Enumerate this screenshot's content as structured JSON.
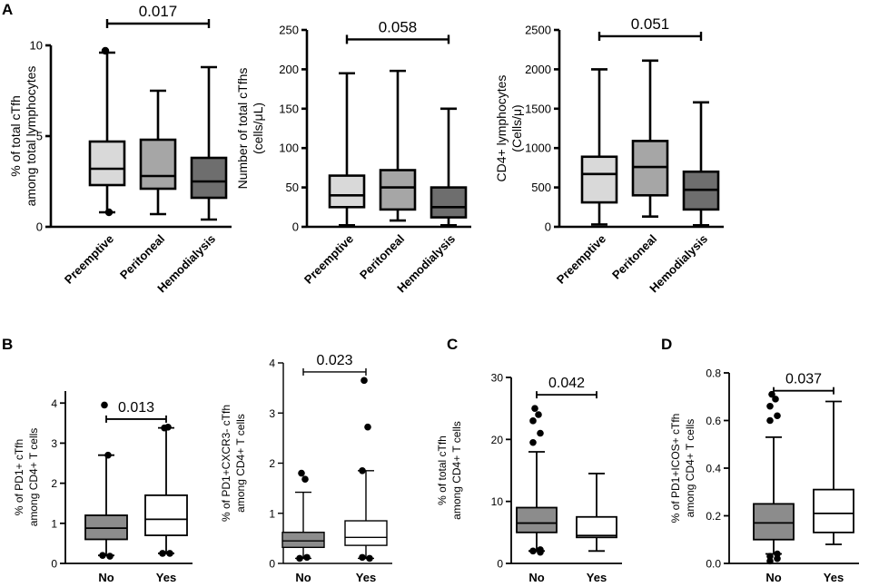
{
  "panel_labels": [
    "A",
    "B",
    "C",
    "D"
  ],
  "colors": {
    "light": "#d9d9d9",
    "mid": "#a6a6a6",
    "dark": "#6e6e6e",
    "white": "#ffffff",
    "gray": "#8c8c8c"
  },
  "chart_data": [
    {
      "type": "box",
      "panel": "A",
      "ylabel_lines": [
        "% of total cTfh",
        "among total lymphocytes"
      ],
      "ylim": [
        0,
        10
      ],
      "yticks": [
        0,
        5,
        10
      ],
      "categories": [
        "Preemptive",
        "Peritoneal",
        "Hemodialysis"
      ],
      "series": [
        {
          "name": "Preemptive",
          "color": "light",
          "min": 0.8,
          "q1": 2.3,
          "median": 3.2,
          "q3": 4.7,
          "max": 9.6,
          "outliers": [
            9.7,
            0.8
          ]
        },
        {
          "name": "Peritoneal",
          "color": "mid",
          "min": 0.7,
          "q1": 2.1,
          "median": 2.8,
          "q3": 4.8,
          "max": 7.5,
          "outliers": []
        },
        {
          "name": "Hemodialysis",
          "color": "dark",
          "min": 0.4,
          "q1": 1.6,
          "median": 2.5,
          "q3": 3.8,
          "max": 8.8,
          "outliers": []
        }
      ],
      "comparison": {
        "from": 0,
        "to": 2,
        "label": "0.017",
        "level": 11.2
      }
    },
    {
      "type": "box",
      "panel": "A",
      "ylabel_lines": [
        "Number of total cTfhs",
        "(cells/μL)"
      ],
      "ylim": [
        0,
        250
      ],
      "yticks": [
        0,
        50,
        100,
        150,
        200,
        250
      ],
      "categories": [
        "Preemptive",
        "Peritoneal",
        "Hemodialysis"
      ],
      "series": [
        {
          "name": "Preemptive",
          "color": "light",
          "min": 2,
          "q1": 25,
          "median": 40,
          "q3": 65,
          "max": 195,
          "outliers": []
        },
        {
          "name": "Peritoneal",
          "color": "mid",
          "min": 8,
          "q1": 22,
          "median": 50,
          "q3": 72,
          "max": 198,
          "outliers": []
        },
        {
          "name": "Hemodialysis",
          "color": "dark",
          "min": 2,
          "q1": 12,
          "median": 25,
          "q3": 50,
          "max": 150,
          "outliers": []
        }
      ],
      "comparison": {
        "from": 0,
        "to": 2,
        "label": "0.058",
        "level": 238
      }
    },
    {
      "type": "box",
      "panel": "A",
      "ylabel_lines": [
        "CD4+ lymphocytes",
        "(Cells/μ)"
      ],
      "ylim": [
        0,
        2500
      ],
      "yticks": [
        0,
        500,
        1000,
        1500,
        2000,
        2500
      ],
      "categories": [
        "Preemptive",
        "Peritoneal",
        "Hemodialysis"
      ],
      "series": [
        {
          "name": "Preemptive",
          "color": "light",
          "min": 30,
          "q1": 310,
          "median": 670,
          "q3": 890,
          "max": 2000,
          "outliers": []
        },
        {
          "name": "Peritoneal",
          "color": "mid",
          "min": 130,
          "q1": 400,
          "median": 760,
          "q3": 1090,
          "max": 2110,
          "outliers": []
        },
        {
          "name": "Hemodialysis",
          "color": "dark",
          "min": 20,
          "q1": 220,
          "median": 470,
          "q3": 700,
          "max": 1580,
          "outliers": []
        }
      ],
      "comparison": {
        "from": 0,
        "to": 2,
        "label": "0.051",
        "level": 2420
      }
    },
    {
      "type": "box",
      "panel": "B",
      "ylabel_lines": [
        "% of PD1+ cTfh",
        "among  CD4+ T cells"
      ],
      "ylim": [
        0,
        4.3
      ],
      "yticks": [
        0,
        1,
        2,
        3,
        4
      ],
      "categories": [
        "No",
        "Yes"
      ],
      "series": [
        {
          "name": "No",
          "color": "gray",
          "min": 0.2,
          "q1": 0.6,
          "median": 0.88,
          "q3": 1.2,
          "max": 2.7,
          "outliers": [
            3.95,
            2.7,
            0.2,
            0.18
          ]
        },
        {
          "name": "Yes",
          "color": "white",
          "min": 0.25,
          "q1": 0.7,
          "median": 1.1,
          "q3": 1.7,
          "max": 3.38,
          "outliers": [
            3.38,
            3.4,
            0.25,
            0.25
          ]
        }
      ],
      "comparison": {
        "from": 0,
        "to": 1,
        "label": "0.013",
        "level": 3.6
      }
    },
    {
      "type": "box",
      "panel": "B",
      "ylabel_lines": [
        "% of PD1+CXCR3- cTfh",
        "among  CD4+ T cells"
      ],
      "ylim": [
        0,
        4
      ],
      "yticks": [
        0,
        1,
        2,
        3,
        4
      ],
      "categories": [
        "No",
        "Yes"
      ],
      "series": [
        {
          "name": "No",
          "color": "gray",
          "min": 0.1,
          "q1": 0.32,
          "median": 0.45,
          "q3": 0.62,
          "max": 1.42,
          "outliers": [
            1.8,
            1.68,
            0.1,
            0.12
          ]
        },
        {
          "name": "Yes",
          "color": "white",
          "min": 0.1,
          "q1": 0.36,
          "median": 0.52,
          "q3": 0.85,
          "max": 1.85,
          "outliers": [
            3.65,
            2.72,
            1.85,
            0.1,
            0.12
          ]
        }
      ],
      "comparison": {
        "from": 0,
        "to": 1,
        "label": "0.023",
        "level": 3.82
      }
    },
    {
      "type": "box",
      "panel": "C",
      "ylabel_lines": [
        "% of total cTfh",
        "among  CD4+ T cells"
      ],
      "ylim": [
        0,
        30
      ],
      "yticks": [
        0,
        10,
        20,
        30
      ],
      "categories": [
        "No",
        "Yes"
      ],
      "series": [
        {
          "name": "No",
          "color": "gray",
          "min": 2,
          "q1": 5,
          "median": 6.5,
          "q3": 9,
          "max": 18,
          "outliers": [
            25,
            24,
            23,
            21,
            19.5,
            2.2,
            2.0,
            1.8
          ]
        },
        {
          "name": "Yes",
          "color": "white",
          "min": 2,
          "q1": 4.2,
          "median": 4.5,
          "q3": 7.5,
          "max": 14.5,
          "outliers": []
        }
      ],
      "comparison": {
        "from": 0,
        "to": 1,
        "label": "0.042",
        "level": 27.2
      }
    },
    {
      "type": "box",
      "panel": "D",
      "ylabel_lines": [
        "% of PD1+ICOS+ cTfh",
        "among  CD4+ T cells"
      ],
      "ylim": [
        0,
        0.8
      ],
      "yticks": [
        0.0,
        0.2,
        0.4,
        0.6,
        0.8
      ],
      "tick_format": "fixed1",
      "categories": [
        "No",
        "Yes"
      ],
      "series": [
        {
          "name": "No",
          "color": "gray",
          "min": 0.04,
          "q1": 0.1,
          "median": 0.17,
          "q3": 0.25,
          "max": 0.53,
          "outliers": [
            0.71,
            0.69,
            0.66,
            0.62,
            0.6,
            0.04,
            0.03,
            0.02,
            0.01
          ]
        },
        {
          "name": "Yes",
          "color": "white",
          "min": 0.08,
          "q1": 0.13,
          "median": 0.21,
          "q3": 0.31,
          "max": 0.68,
          "outliers": []
        }
      ],
      "comparison": {
        "from": 0,
        "to": 1,
        "label": "0.037",
        "level": 0.725
      }
    }
  ]
}
